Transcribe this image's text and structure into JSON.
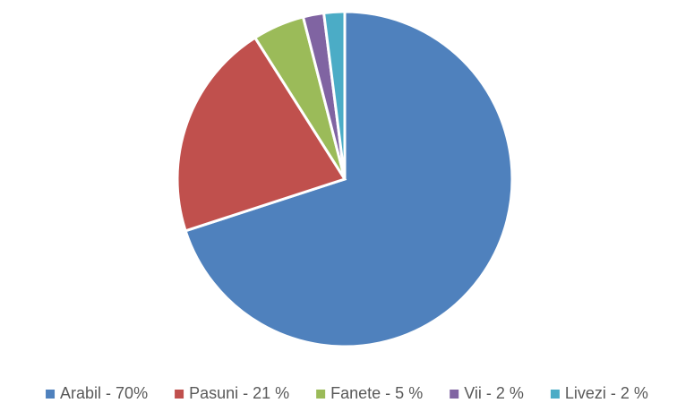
{
  "chart_data": {
    "type": "pie",
    "categories": [
      "Arabil - 70%",
      "Pasuni - 21 %",
      "Fanete - 5 %",
      "Vii - 2 %",
      "Livezi - 2 %"
    ],
    "values": [
      70,
      21,
      5,
      2,
      2
    ],
    "colors": [
      "#4f81bd",
      "#c0504d",
      "#9bbb59",
      "#8064a2",
      "#4bacc6"
    ],
    "legend": "bottom"
  }
}
